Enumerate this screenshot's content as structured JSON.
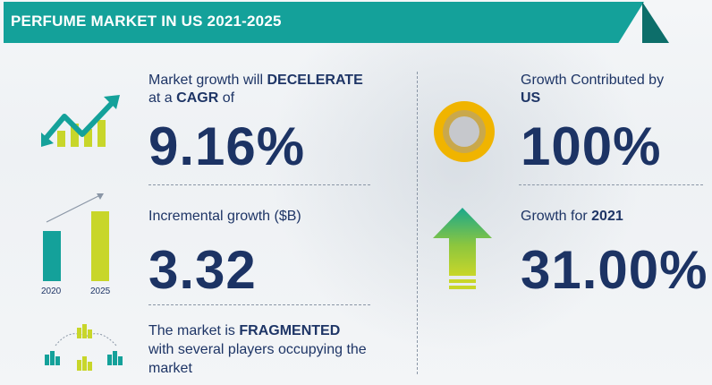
{
  "header": {
    "title": "PERFUME MARKET IN US 2021-2025"
  },
  "cagr": {
    "line1_prefix": "Market growth will ",
    "line1_bold": "DECELERATE",
    "line2_prefix": "at a ",
    "line2_bold": "CAGR",
    "line2_suffix": " of",
    "value": "9.16%"
  },
  "incremental": {
    "label": "Incremental growth ($B)",
    "value": "3.32",
    "bars": [
      {
        "year": "2020",
        "color": "#14a19a"
      },
      {
        "year": "2025",
        "color": "#c8d62a"
      }
    ]
  },
  "market": {
    "line1_prefix": "The market is ",
    "line1_bold": "FRAGMENTED",
    "line2": "with several players occupying the",
    "line3": "market"
  },
  "contribution": {
    "line1": "Growth Contributed by",
    "line2_bold": "US",
    "value": "100%"
  },
  "growth_year": {
    "label_prefix": "Growth for ",
    "label_bold": "2021",
    "value": "31.00%"
  },
  "colors": {
    "teal": "#14a19a",
    "lime": "#c8d62a",
    "navy": "#1c3364",
    "gold": "#f0b400"
  }
}
